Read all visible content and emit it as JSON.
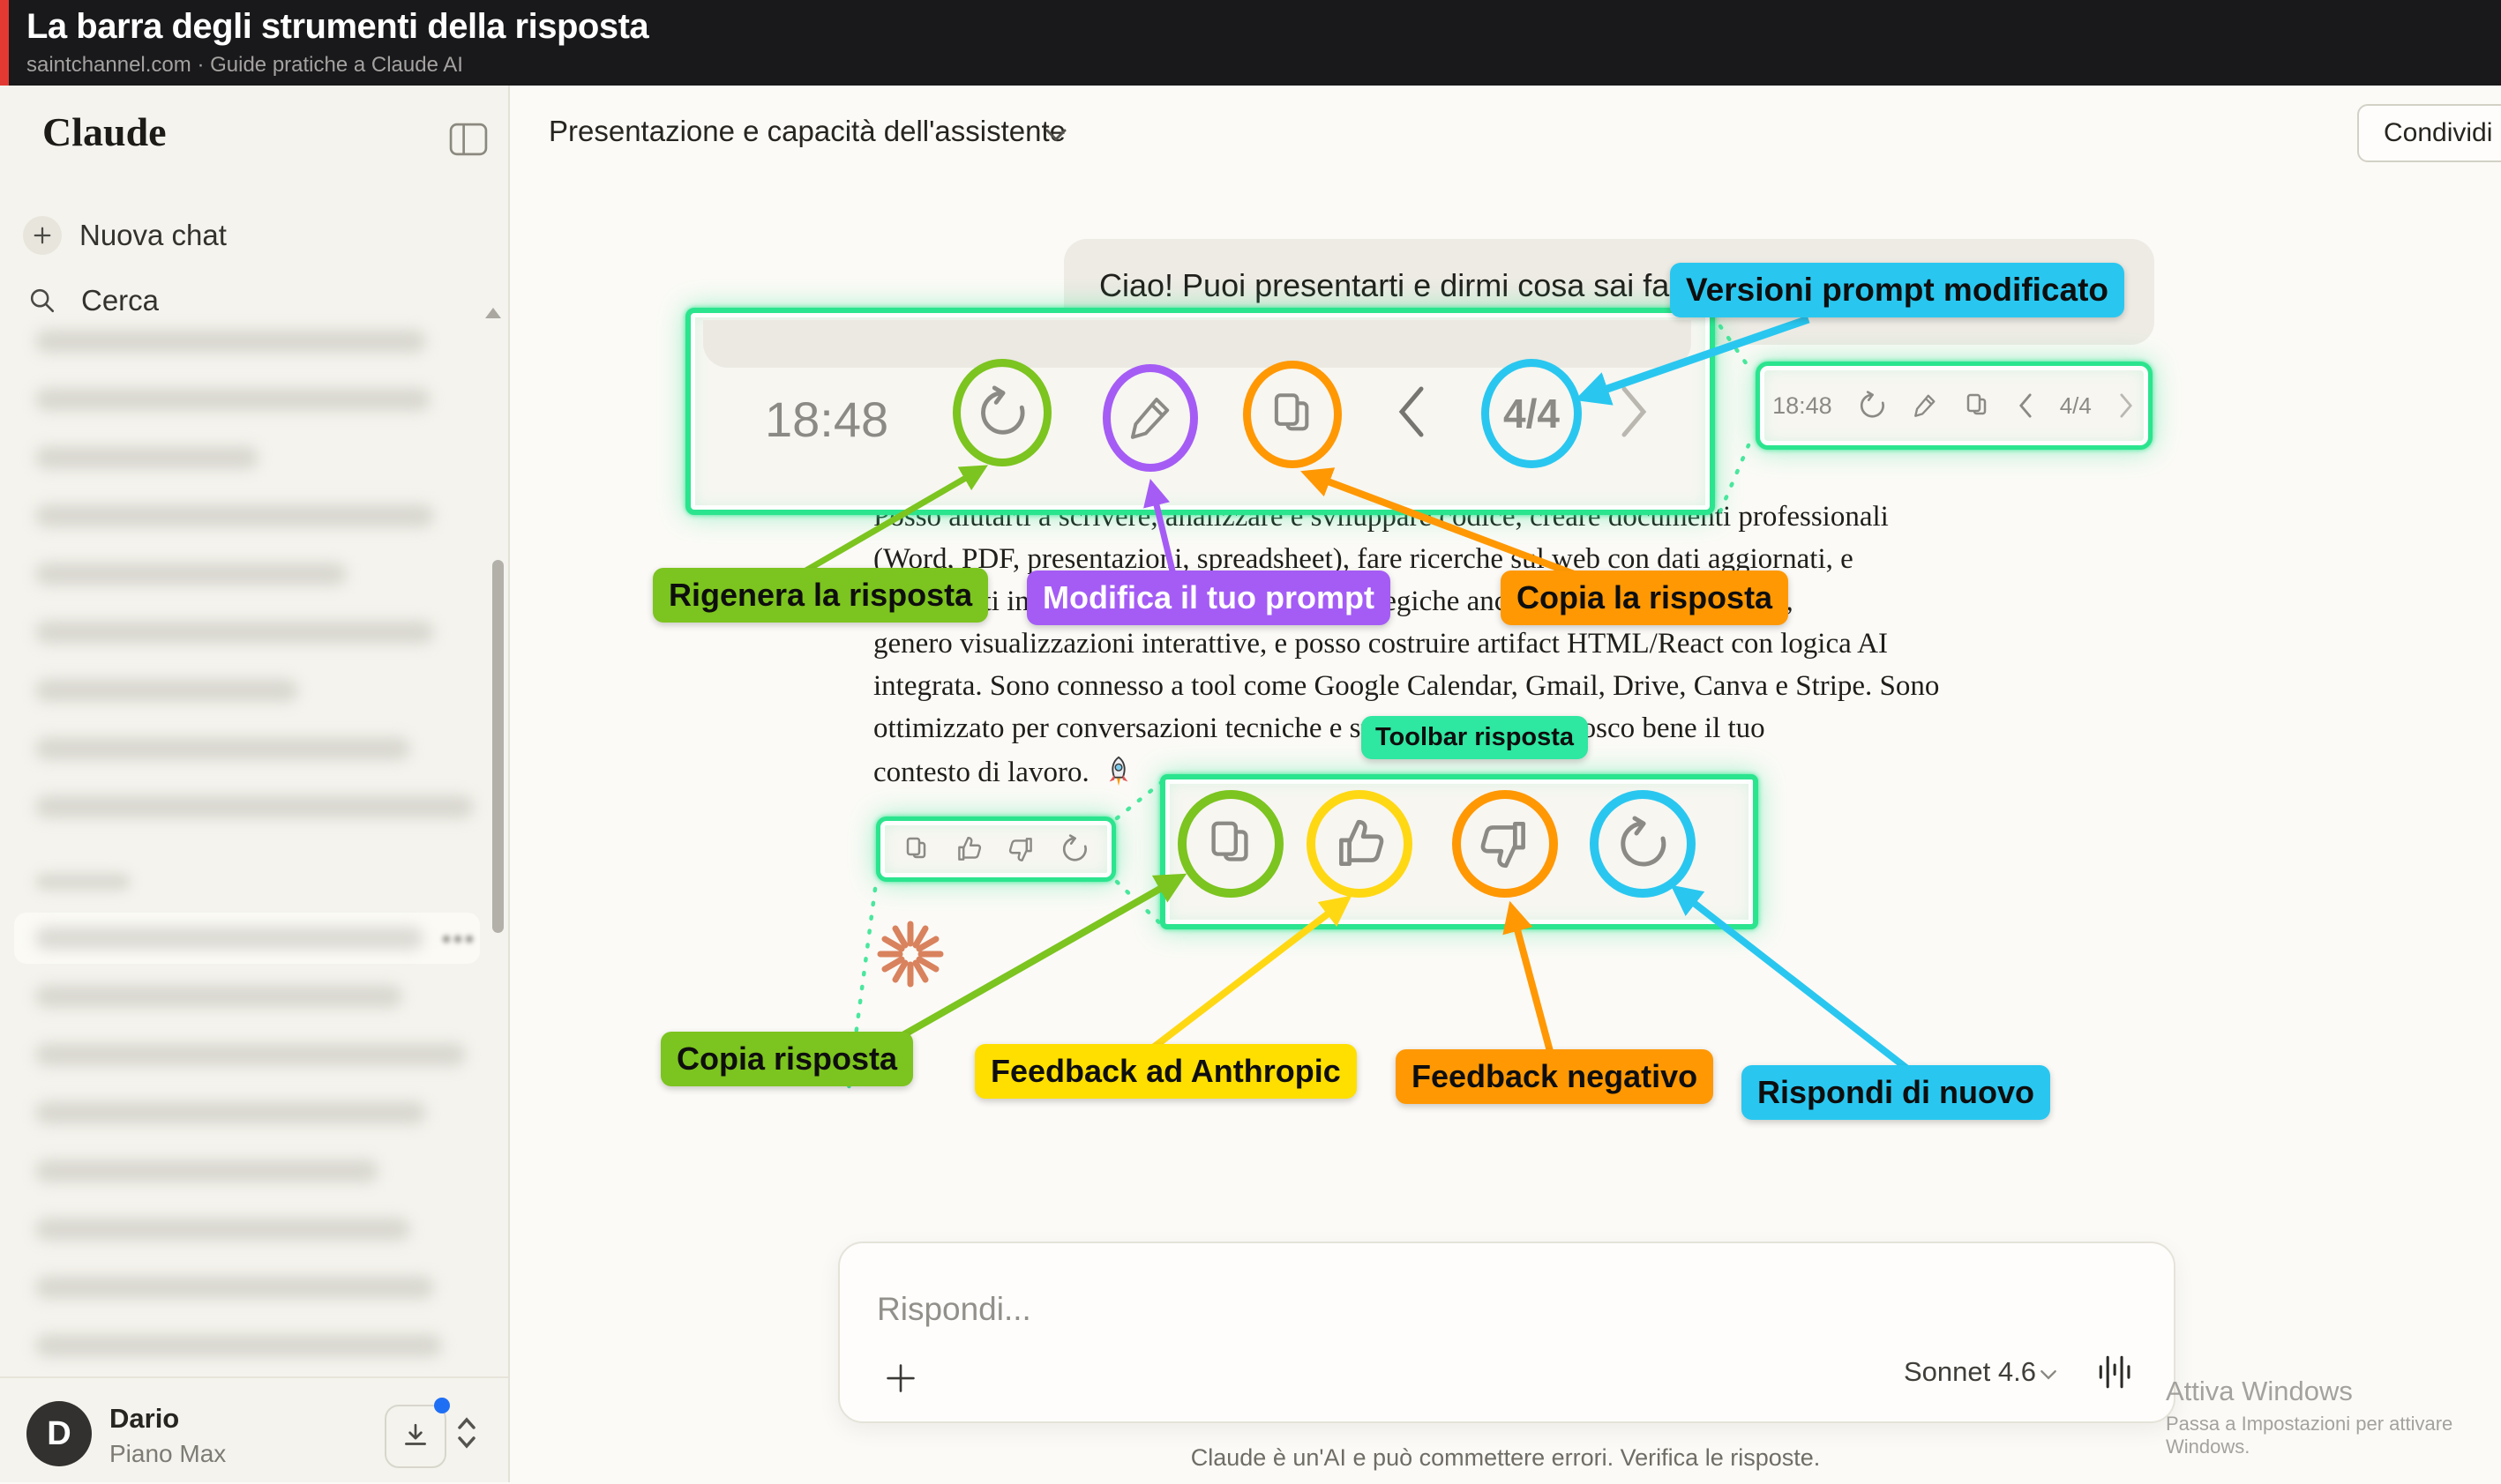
{
  "banner": {
    "title": "La barra degli strumenti della risposta",
    "subtitle": "saintchannel.com · Guide pratiche a Claude AI"
  },
  "sidebar": {
    "logo": "Claude",
    "new_chat_label": "Nuova chat",
    "search_label": "Cerca",
    "blurred_history": {
      "group1": [
        443,
        448,
        253,
        452,
        353,
        452,
        298,
        425,
        497
      ],
      "group2": [
        416,
        488,
        443,
        389,
        425,
        452,
        461
      ]
    },
    "user": {
      "initial": "D",
      "name": "Dario",
      "plan": "Piano Max"
    }
  },
  "header": {
    "conversation_title": "Presentazione e capacità dell'assistente",
    "share_label": "Condividi"
  },
  "chat": {
    "user_message": "Ciao! Puoi presentarti e dirmi cosa sai fare? (",
    "response_lines": [
      "Posso aiutarti a scrivere, analizzare e sviluppare codice, creare documenti professionali",
      "(Word, PDF, presentazioni, spreadsheet), fare ricerche sul web con dati aggiornati, e",
      "supportarti in progetti e comunicazioni strategiche anche con file caricati da te,",
      "genero visualizzazioni interattive, e posso costruire artifact HTML/React con logica AI",
      "integrata. Sono connesso a tool come Google Calendar, Gmail, Drive, Canva e Stripe. Sono",
      "ottimizzato per conversazioni tecniche e strategiche — e conosco bene il tuo",
      "contesto di lavoro."
    ],
    "disclaimer": "Claude è un'AI e può commettere errori. Verifica le risposte."
  },
  "toolbar_demo": {
    "time": "18:48",
    "page_indicator": "4/4",
    "annotations": {
      "versions": "Versioni prompt modificato",
      "regenerate": "Rigenera la risposta",
      "edit_prompt": "Modifica il tuo prompt",
      "copy_top": "Copia la risposta",
      "toolbar": "Toolbar risposta",
      "copy_bottom": "Copia risposta",
      "feedback_anthropic": "Feedback ad Anthropic",
      "feedback_negative": "Feedback negativo",
      "retry": "Rispondi di nuovo"
    },
    "icons": {
      "retry": "circular-arrow",
      "edit": "pencil",
      "copy": "overlapping-squares",
      "prev": "chevron-left",
      "next": "chevron-right",
      "thumbs_up": "thumb-up",
      "thumbs_down": "thumb-down"
    },
    "colors": {
      "neon_box": "#2be48e",
      "green": "#7cc41f",
      "purple": "#a55cf5",
      "orange": "#ff9803",
      "cyan": "#29c7f0",
      "yellow": "#ffd814",
      "yellow_label": "#ffdf00",
      "spring_green": "#2ee7a1"
    }
  },
  "composer": {
    "placeholder": "Rispondi...",
    "model": "Sonnet 4.6"
  },
  "watermark": {
    "line1": "Attiva Windows",
    "line2": "Passa a Impostazioni per attivare Windows."
  },
  "misc_colors": {
    "banner_red": "#e23a33",
    "starburst": "#d9825e",
    "notification_blue": "#1f6ff5"
  }
}
